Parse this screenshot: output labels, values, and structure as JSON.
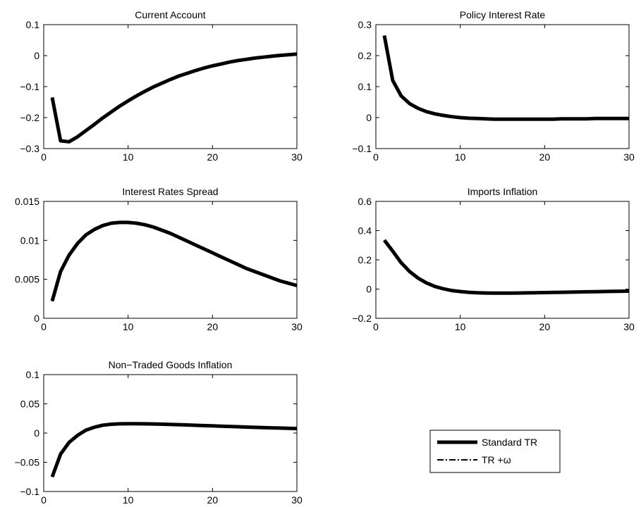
{
  "chart_data": [
    {
      "type": "line",
      "title": "Current Account",
      "xlim": [
        0,
        30
      ],
      "ylim": [
        -0.3,
        0.1
      ],
      "xticks": [
        0,
        10,
        20,
        30
      ],
      "yticks": [
        -0.3,
        -0.2,
        -0.1,
        0,
        0.1
      ],
      "xtick_labels": [
        "0",
        "10",
        "20",
        "30"
      ],
      "ytick_labels": [
        "−0.3",
        "−0.2",
        "−0.1",
        "0",
        "0.1"
      ],
      "series": [
        {
          "style": "solid",
          "x": [
            1,
            2,
            3,
            4,
            5,
            6,
            7,
            8,
            9,
            10,
            11,
            12,
            13,
            14,
            15,
            16,
            17,
            18,
            19,
            20,
            21,
            22,
            23,
            24,
            25,
            26,
            27,
            28,
            29,
            30
          ],
          "values": [
            -0.135,
            -0.275,
            -0.278,
            -0.262,
            -0.242,
            -0.222,
            -0.201,
            -0.182,
            -0.163,
            -0.146,
            -0.13,
            -0.115,
            -0.101,
            -0.089,
            -0.077,
            -0.066,
            -0.057,
            -0.048,
            -0.04,
            -0.033,
            -0.027,
            -0.021,
            -0.016,
            -0.012,
            -0.008,
            -0.005,
            -0.002,
            0.001,
            0.003,
            0.005
          ]
        }
      ]
    },
    {
      "type": "line",
      "title": "Policy Interest Rate",
      "xlim": [
        0,
        30
      ],
      "ylim": [
        -0.1,
        0.3
      ],
      "xticks": [
        0,
        10,
        20,
        30
      ],
      "yticks": [
        -0.1,
        0,
        0.1,
        0.2,
        0.3
      ],
      "xtick_labels": [
        "0",
        "10",
        "20",
        "30"
      ],
      "ytick_labels": [
        "−0.1",
        "0",
        "0.1",
        "0.2",
        "0.3"
      ],
      "series": [
        {
          "style": "solid",
          "x": [
            1,
            2,
            3,
            4,
            5,
            6,
            7,
            8,
            9,
            10,
            11,
            12,
            13,
            14,
            15,
            16,
            17,
            18,
            19,
            20,
            21,
            22,
            23,
            24,
            25,
            26,
            27,
            28,
            29,
            30
          ],
          "values": [
            0.265,
            0.12,
            0.07,
            0.045,
            0.03,
            0.019,
            0.012,
            0.007,
            0.003,
            0.0,
            -0.002,
            -0.003,
            -0.004,
            -0.005,
            -0.005,
            -0.005,
            -0.005,
            -0.005,
            -0.005,
            -0.005,
            -0.005,
            -0.004,
            -0.004,
            -0.004,
            -0.004,
            -0.003,
            -0.003,
            -0.003,
            -0.003,
            -0.003
          ]
        }
      ]
    },
    {
      "type": "line",
      "title": "Interest Rates Spread",
      "xlim": [
        0,
        30
      ],
      "ylim": [
        0,
        0.015
      ],
      "xticks": [
        0,
        10,
        20,
        30
      ],
      "yticks": [
        0,
        0.005,
        0.01,
        0.015
      ],
      "xtick_labels": [
        "0",
        "10",
        "20",
        "30"
      ],
      "ytick_labels": [
        "0",
        "0.005",
        "0.01",
        "0.015"
      ],
      "series": [
        {
          "style": "solid",
          "x": [
            1,
            2,
            3,
            4,
            5,
            6,
            7,
            8,
            9,
            10,
            11,
            12,
            13,
            14,
            15,
            16,
            17,
            18,
            19,
            20,
            21,
            22,
            23,
            24,
            25,
            26,
            27,
            28,
            29,
            30
          ],
          "values": [
            0.0022,
            0.006,
            0.0081,
            0.0096,
            0.0107,
            0.0114,
            0.0119,
            0.0122,
            0.0123,
            0.0123,
            0.0122,
            0.012,
            0.0117,
            0.0113,
            0.0109,
            0.0104,
            0.0099,
            0.0094,
            0.0089,
            0.0084,
            0.0079,
            0.0074,
            0.0069,
            0.0064,
            0.006,
            0.0056,
            0.0052,
            0.0048,
            0.0045,
            0.0042
          ]
        }
      ]
    },
    {
      "type": "line",
      "title": "Imports Inflation",
      "xlim": [
        0,
        30
      ],
      "ylim": [
        -0.2,
        0.6
      ],
      "xticks": [
        0,
        10,
        20,
        30
      ],
      "yticks": [
        -0.2,
        0,
        0.2,
        0.4,
        0.6
      ],
      "xtick_labels": [
        "0",
        "10",
        "20",
        "30"
      ],
      "ytick_labels": [
        "−0.2",
        "0",
        "0.2",
        "0.4",
        "0.6"
      ],
      "series": [
        {
          "style": "solid",
          "x": [
            1,
            2,
            3,
            4,
            5,
            6,
            7,
            8,
            9,
            10,
            11,
            12,
            13,
            14,
            15,
            16,
            17,
            18,
            19,
            20,
            21,
            22,
            23,
            24,
            25,
            26,
            27,
            28,
            29,
            30
          ],
          "values": [
            0.335,
            0.26,
            0.18,
            0.12,
            0.075,
            0.042,
            0.018,
            0.002,
            -0.01,
            -0.017,
            -0.022,
            -0.025,
            -0.027,
            -0.028,
            -0.028,
            -0.028,
            -0.027,
            -0.026,
            -0.025,
            -0.024,
            -0.023,
            -0.022,
            -0.021,
            -0.02,
            -0.019,
            -0.018,
            -0.017,
            -0.016,
            -0.015,
            -0.014
          ]
        }
      ]
    },
    {
      "type": "line",
      "title": "Non−Traded Goods Inflation",
      "xlim": [
        0,
        30
      ],
      "ylim": [
        -0.1,
        0.1
      ],
      "xticks": [
        0,
        10,
        20,
        30
      ],
      "yticks": [
        -0.1,
        -0.05,
        0,
        0.05,
        0.1
      ],
      "xtick_labels": [
        "0",
        "10",
        "20",
        "30"
      ],
      "ytick_labels": [
        "−0.1",
        "−0.05",
        "0",
        "0.05",
        "0.1"
      ],
      "series": [
        {
          "style": "solid",
          "x": [
            1,
            2,
            3,
            4,
            5,
            6,
            7,
            8,
            9,
            10,
            11,
            12,
            13,
            14,
            15,
            16,
            17,
            18,
            19,
            20,
            21,
            22,
            23,
            24,
            25,
            26,
            27,
            28,
            29,
            30
          ],
          "values": [
            -0.075,
            -0.036,
            -0.016,
            -0.004,
            0.005,
            0.01,
            0.0135,
            0.015,
            0.0158,
            0.016,
            0.016,
            0.0158,
            0.0155,
            0.0152,
            0.0148,
            0.0143,
            0.0138,
            0.0133,
            0.0128,
            0.0123,
            0.0118,
            0.0113,
            0.0108,
            0.0103,
            0.0098,
            0.0093,
            0.0089,
            0.0085,
            0.0081,
            0.0077
          ]
        }
      ]
    }
  ],
  "legend": {
    "entries": [
      {
        "label": "Standard TR",
        "style": "solid"
      },
      {
        "label": "TR +ω",
        "style": "dash-dot"
      }
    ]
  }
}
